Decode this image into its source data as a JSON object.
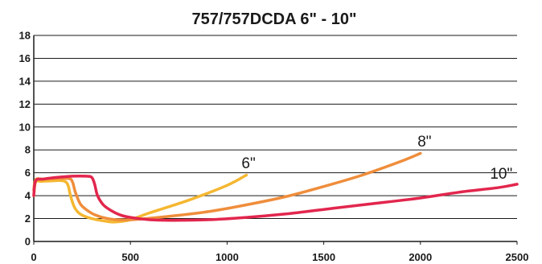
{
  "chart_data": {
    "type": "line",
    "title": "757/757DCDA 6\" - 10\"",
    "xlim": [
      0,
      2500
    ],
    "ylim": [
      0,
      18
    ],
    "x_ticks": [
      "0",
      "500",
      "1000",
      "1500",
      "2000",
      "2500"
    ],
    "y_ticks": [
      "0",
      "2",
      "4",
      "6",
      "8",
      "10",
      "12",
      "14",
      "16",
      "18"
    ],
    "grid": "horizontal",
    "series": [
      {
        "name": "6\"",
        "color": "#f5b731",
        "x": [
          0,
          10,
          40,
          100,
          150,
          175,
          190,
          210,
          240,
          300,
          380,
          420,
          500,
          600,
          800,
          1000,
          1100
        ],
        "y": [
          4.0,
          5.2,
          5.25,
          5.3,
          5.3,
          5.0,
          4.0,
          3.0,
          2.4,
          2.0,
          1.75,
          1.7,
          1.9,
          2.5,
          3.6,
          4.9,
          5.8
        ]
      },
      {
        "name": "8\"",
        "color": "#ef8d3b",
        "x": [
          0,
          10,
          50,
          100,
          180,
          200,
          215,
          240,
          270,
          320,
          400,
          500,
          700,
          900,
          1100,
          1300,
          1500,
          1700,
          1900,
          2000
        ],
        "y": [
          4.5,
          5.4,
          5.45,
          5.5,
          5.5,
          5.2,
          4.3,
          3.3,
          2.8,
          2.3,
          1.95,
          1.9,
          2.2,
          2.6,
          3.2,
          3.9,
          4.8,
          5.8,
          7.0,
          7.7
        ]
      },
      {
        "name": "10\"",
        "color": "#e2264d",
        "x": [
          0,
          10,
          50,
          120,
          200,
          270,
          300,
          315,
          330,
          360,
          400,
          450,
          500,
          600,
          700,
          900,
          1100,
          1300,
          1500,
          1700,
          2000,
          2200,
          2400,
          2500
        ],
        "y": [
          4.0,
          5.3,
          5.45,
          5.6,
          5.7,
          5.7,
          5.6,
          5.0,
          4.0,
          3.2,
          2.7,
          2.3,
          2.1,
          1.9,
          1.85,
          1.9,
          2.1,
          2.4,
          2.8,
          3.2,
          3.8,
          4.3,
          4.7,
          5.0
        ]
      }
    ],
    "labels": [
      {
        "text": "6\"",
        "x": 1075,
        "y": 6.4
      },
      {
        "text": "8\"",
        "x": 1985,
        "y": 8.3
      },
      {
        "text": "10\"",
        "x": 2360,
        "y": 5.5
      }
    ]
  }
}
